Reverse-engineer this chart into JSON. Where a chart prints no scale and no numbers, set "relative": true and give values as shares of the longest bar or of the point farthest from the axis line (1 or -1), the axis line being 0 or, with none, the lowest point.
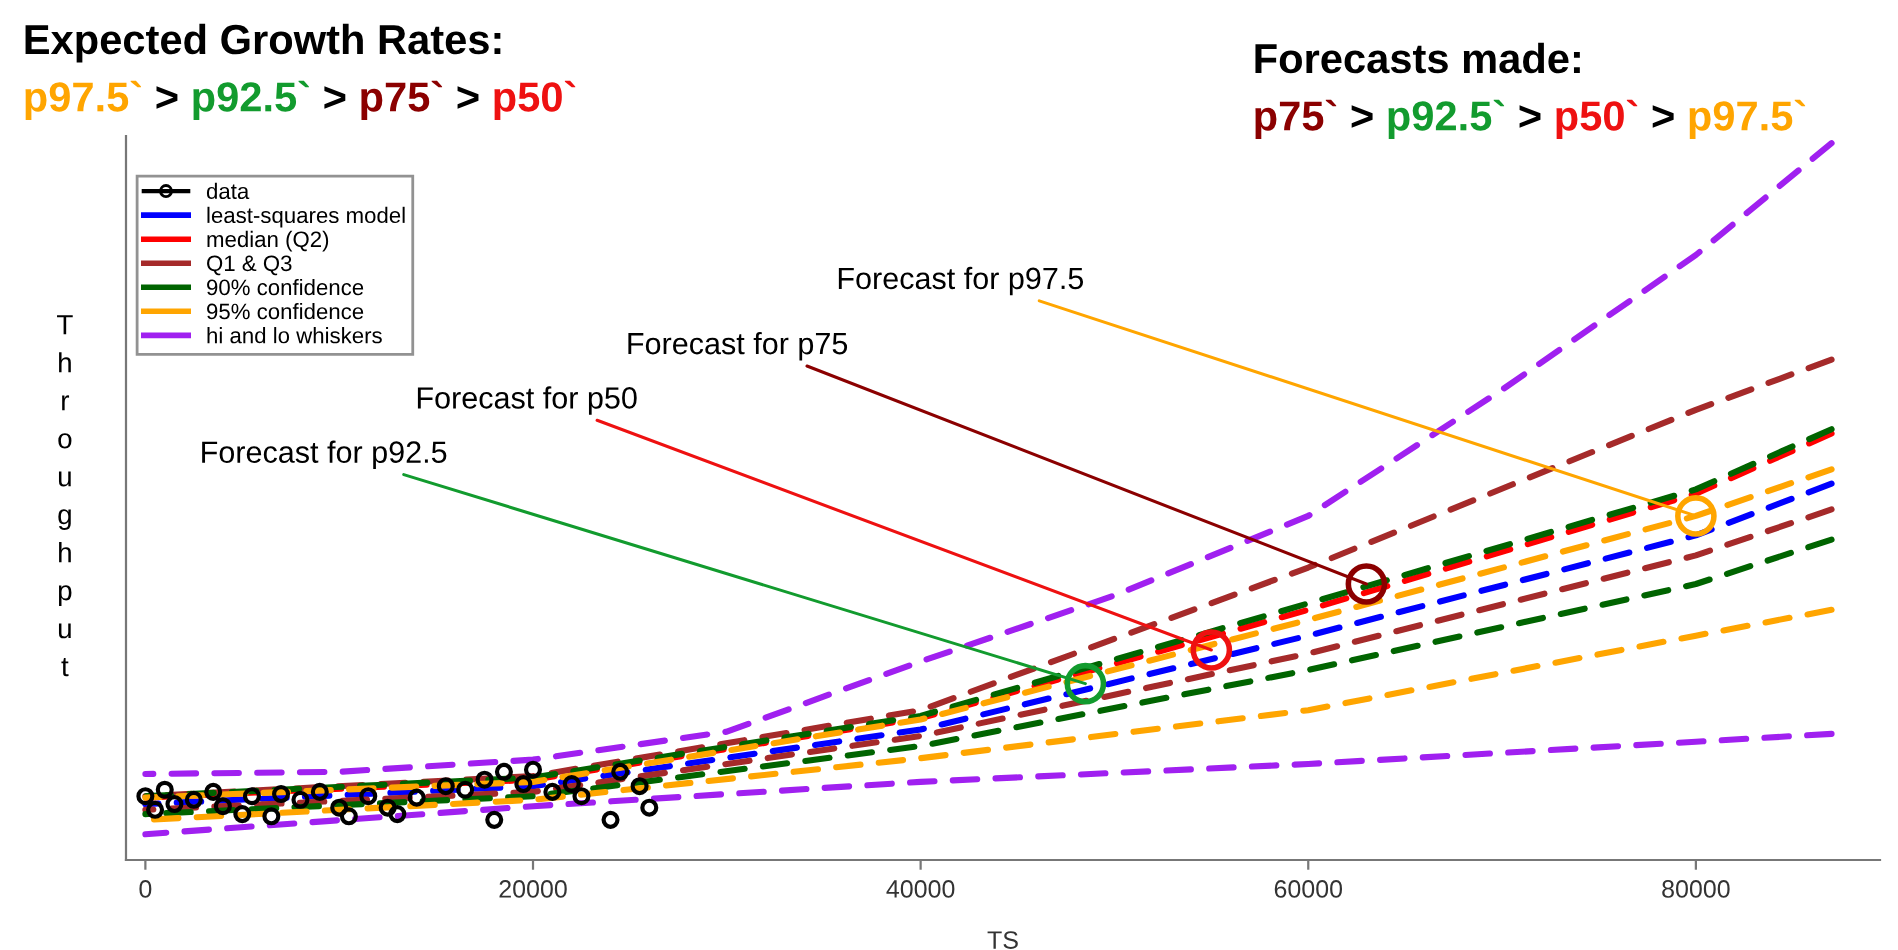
{
  "chart_data": {
    "type": "line",
    "relative": true,
    "xlabel": "TS",
    "ylabel": "Throughput",
    "xlim": [
      -1000,
      89500
    ],
    "xticks": [
      0,
      20000,
      40000,
      60000,
      80000
    ],
    "legend": "top left",
    "grid": false,
    "series": [
      {
        "name": "data",
        "type": "scatter",
        "marker": "circle",
        "color": "#000000",
        "x": [
          0,
          500,
          1000,
          1500,
          2500,
          3500,
          4000,
          5000,
          5500,
          6500,
          7000,
          8000,
          9000,
          10000,
          10500,
          11500,
          12500,
          13000,
          14000,
          15500,
          16500,
          17500,
          18000,
          18500,
          19500,
          20000,
          21000,
          22000,
          22500,
          24000,
          24500,
          25500,
          26000
        ],
        "values": [
          0.089,
          0.07,
          0.098,
          0.078,
          0.084,
          0.095,
          0.075,
          0.064,
          0.089,
          0.061,
          0.092,
          0.084,
          0.095,
          0.073,
          0.061,
          0.089,
          0.073,
          0.064,
          0.087,
          0.103,
          0.098,
          0.112,
          0.056,
          0.123,
          0.106,
          0.126,
          0.095,
          0.106,
          0.089,
          0.056,
          0.123,
          0.103,
          0.073
        ]
      },
      {
        "name": "least-squares model",
        "line_style": "dashed",
        "color": "#0000ff",
        "x": [
          0,
          20000,
          40000,
          60000,
          80000,
          87000
        ],
        "values": [
          0.078,
          0.103,
          0.182,
          0.313,
          0.453,
          0.525
        ]
      },
      {
        "name": "median (Q2)",
        "line_style": "dashed",
        "color": "#ff0000",
        "x": [
          0,
          20000,
          40000,
          60000,
          80000,
          87000
        ],
        "values": [
          0.087,
          0.112,
          0.198,
          0.349,
          0.511,
          0.595
        ]
      },
      {
        "name": "Q1 & Q3",
        "line_style": "dashed",
        "color": "#a52a2a",
        "x": [
          0,
          20000,
          40000,
          60000,
          80000,
          87000
        ],
        "values": [
          0.089,
          0.117,
          0.209,
          0.408,
          0.628,
          0.698
        ]
      },
      {
        "line_style": "dashed",
        "color": "#a52a2a",
        "x": [
          0,
          20000,
          40000,
          60000,
          80000,
          87000
        ],
        "values": [
          0.07,
          0.095,
          0.173,
          0.288,
          0.425,
          0.489
        ]
      },
      {
        "name": "90% confidence",
        "line_style": "dashed",
        "color": "#006400",
        "x": [
          0,
          20000,
          40000,
          60000,
          80000,
          87000
        ],
        "values": [
          0.089,
          0.115,
          0.201,
          0.358,
          0.517,
          0.601
        ]
      },
      {
        "line_style": "dashed",
        "color": "#006400",
        "x": [
          0,
          20000,
          40000,
          60000,
          80000,
          87000
        ],
        "values": [
          0.064,
          0.089,
          0.159,
          0.265,
          0.385,
          0.447
        ]
      },
      {
        "name": "95% confidence",
        "line_style": "dashed",
        "color": "#ffa500",
        "x": [
          0,
          20000,
          40000,
          60000,
          80000,
          87000
        ],
        "values": [
          0.087,
          0.109,
          0.196,
          0.335,
          0.48,
          0.545
        ]
      },
      {
        "line_style": "dashed",
        "color": "#ffa500",
        "x": [
          0,
          20000,
          40000,
          60000,
          80000,
          87000
        ],
        "values": [
          0.056,
          0.084,
          0.142,
          0.209,
          0.313,
          0.349
        ]
      },
      {
        "name": "hi and lo whiskers",
        "line_style": "dashed",
        "color": "#a020f0",
        "x": [
          0,
          10000,
          20000,
          30000,
          40000,
          50000,
          60000,
          70000,
          80000,
          87000
        ],
        "values": [
          0.12,
          0.123,
          0.14,
          0.179,
          0.277,
          0.369,
          0.48,
          0.656,
          0.844,
          1
        ]
      },
      {
        "line_style": "dashed",
        "color": "#a020f0",
        "x": [
          0,
          20000,
          40000,
          60000,
          80000,
          87000
        ],
        "values": [
          0.036,
          0.075,
          0.109,
          0.134,
          0.165,
          0.176
        ]
      },
      {
        "type": "scatter",
        "marker": "circle",
        "color": "#ffa500",
        "x": [
          80000
        ],
        "values": [
          0.48
        ]
      },
      {
        "type": "scatter",
        "marker": "circle",
        "color": "#8b0000",
        "x": [
          63000
        ],
        "values": [
          0.385
        ]
      },
      {
        "type": "scatter",
        "marker": "circle",
        "color": "#ee1111",
        "x": [
          55000
        ],
        "values": [
          0.293
        ]
      },
      {
        "type": "scatter",
        "marker": "circle",
        "color": "#129b2e",
        "x": [
          48500
        ],
        "values": [
          0.246
        ]
      }
    ],
    "annotations": [
      "Expected Growth Rates:",
      "p97.5`",
      ">",
      "p92.5`",
      ">",
      "p75`",
      ">",
      "p50`",
      "Forecasts made:",
      "p75`",
      ">",
      "p92.5`",
      ">",
      "p50`",
      ">",
      "p97.5`",
      {
        "text": "Forecast for p97.5",
        "x": 80000,
        "y": 0.48
      },
      {
        "text": "Forecast for p75",
        "x": 63000,
        "y": 0.385
      },
      {
        "text": "Forecast for p50",
        "x": 55000,
        "y": 0.293
      },
      {
        "text": "Forecast for p92.5",
        "x": 48500,
        "y": 0.246
      }
    ]
  }
}
